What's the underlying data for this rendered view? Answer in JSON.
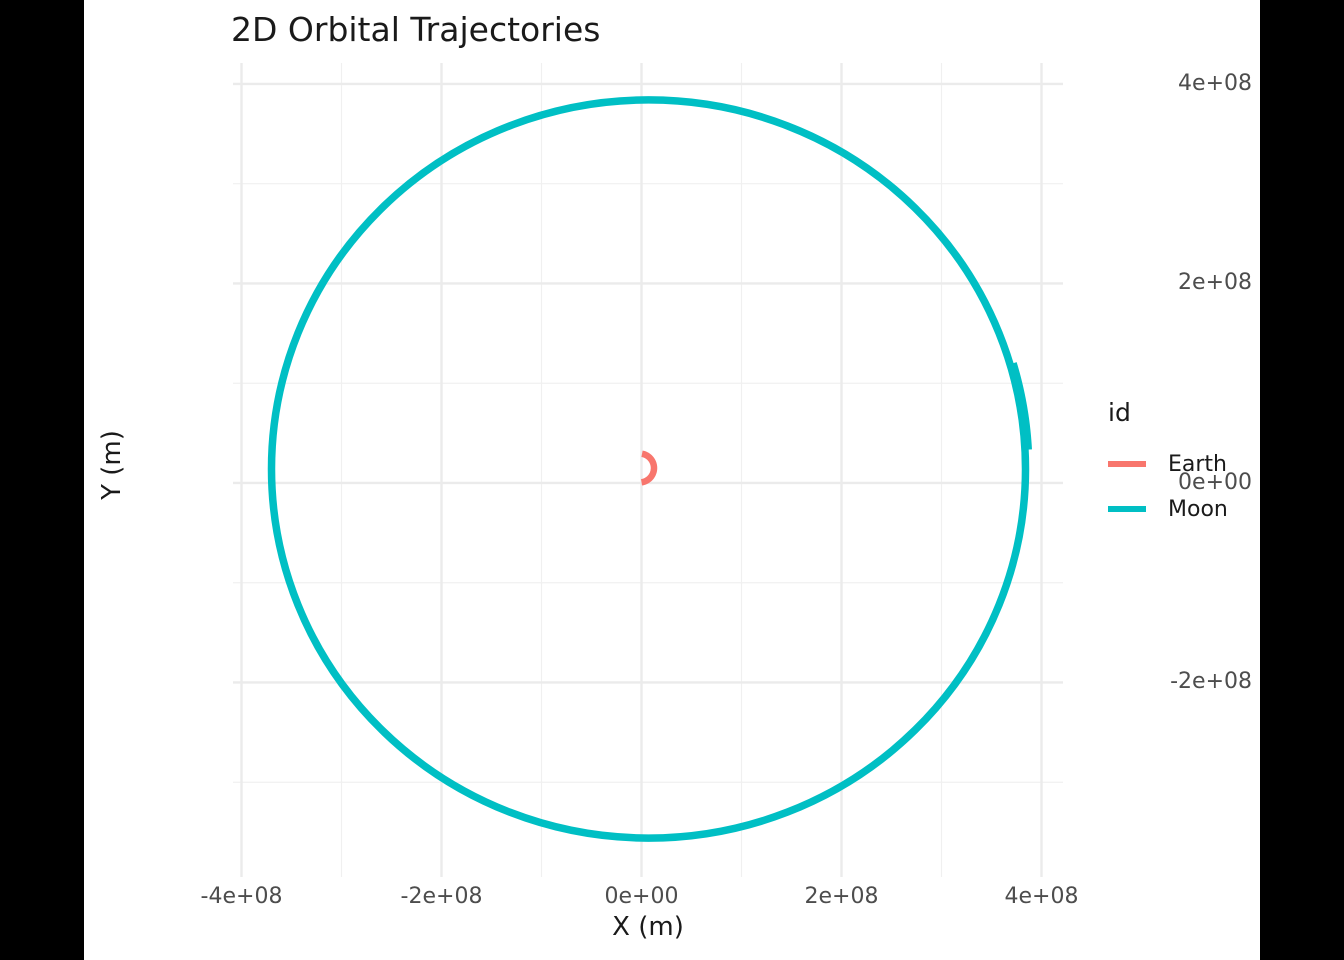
{
  "page": {
    "background_color": "#000000",
    "canvas_color": "#ffffff"
  },
  "legend": {
    "title": "id",
    "entries": [
      {
        "label": "Earth",
        "color": "#F8766D"
      },
      {
        "label": "Moon",
        "color": "#00BFC4"
      }
    ]
  },
  "chart_data": {
    "type": "line",
    "title": "2D Orbital Trajectories",
    "xlabel": "X (m)",
    "ylabel": "Y (m)",
    "xlim": [
      -408500000.0,
      421500000.0
    ],
    "ylim": [
      -395000000.0,
      421000000.0
    ],
    "grid": true,
    "legend_position": "right",
    "x_ticks": [
      {
        "value": -400000000.0,
        "label": "-4e+08"
      },
      {
        "value": -200000000.0,
        "label": "-2e+08"
      },
      {
        "value": 0,
        "label": "0e+00"
      },
      {
        "value": 200000000.0,
        "label": "2e+08"
      },
      {
        "value": 400000000.0,
        "label": "4e+08"
      }
    ],
    "y_ticks": [
      {
        "value": 400000000.0,
        "label": "4e+08"
      },
      {
        "value": 200000000.0,
        "label": "2e+08"
      },
      {
        "value": 0,
        "label": "0e+00"
      },
      {
        "value": -200000000.0,
        "label": "-2e+08"
      }
    ],
    "x_minor_ticks": [
      -300000000.0,
      -100000000.0,
      100000000.0,
      300000000.0
    ],
    "y_minor_ticks": [
      300000000.0,
      100000000.0,
      -100000000.0,
      -300000000.0
    ],
    "grid_colors": {
      "major": "#EBEBEB",
      "minor": "#F0F0F0"
    },
    "series": [
      {
        "name": "Earth",
        "color": "#F8766D",
        "geometry": "arc",
        "orbit": {
          "cx_m": -2000000.0,
          "cy_m": 15000000.0,
          "r_m": 14500000.0,
          "start_deg": 80,
          "end_deg": -82
        }
      },
      {
        "name": "Moon",
        "color": "#00BFC4",
        "geometry": "ellipse_with_overlap",
        "orbit": {
          "cx_m": 7000000.0,
          "cy_m": 14000000.0,
          "rx_m": 377000000.0,
          "ry_m": 370000000.0
        },
        "overlap_arc": {
          "radial_offset_m": 4500000.0,
          "start_deg": 3,
          "end_deg": 16.5
        }
      }
    ]
  }
}
